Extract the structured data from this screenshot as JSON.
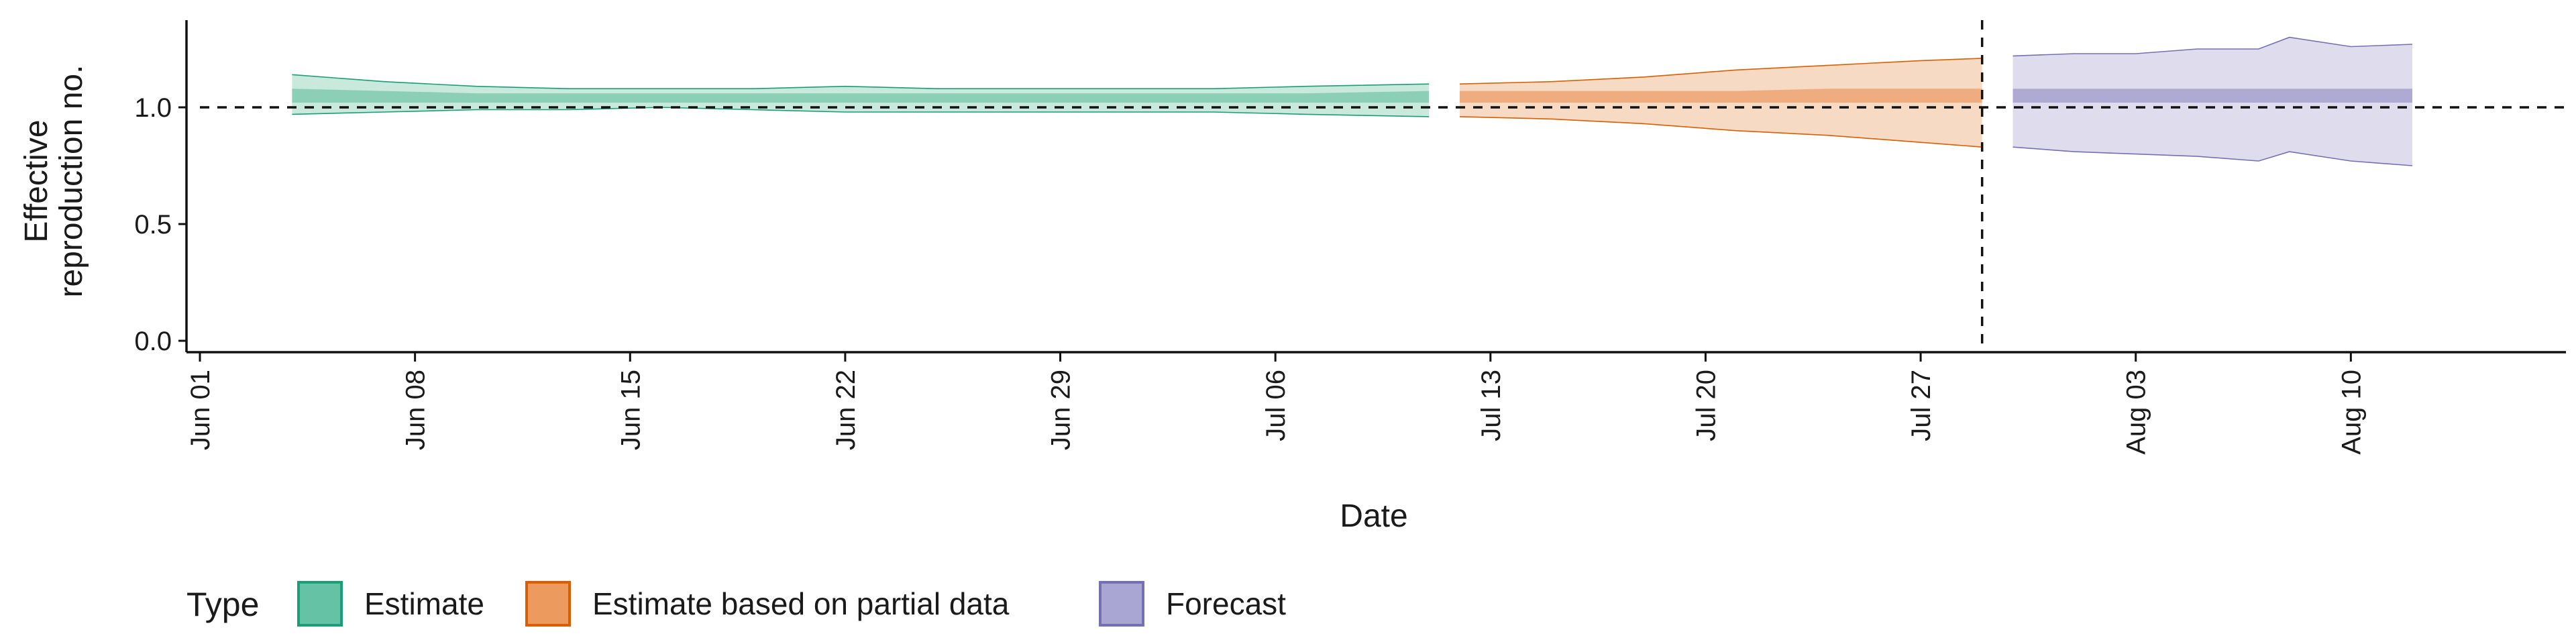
{
  "chart_data": {
    "type": "area",
    "xlabel": "Date",
    "ylabel_lines": [
      "Effective",
      "reproduction no."
    ],
    "x_ticks": [
      "Jun 01",
      "Jun 08",
      "Jun 15",
      "Jun 22",
      "Jun 29",
      "Jul 06",
      "Jul 13",
      "Jul 20",
      "Jul 27",
      "Aug 03",
      "Aug 10"
    ],
    "x_range": [
      "2020-06-01",
      "2020-08-17"
    ],
    "y_ticks": [
      "0.0",
      "0.5",
      "1.0"
    ],
    "ylim": [
      0,
      1.35
    ],
    "reference_line_y": 1.0,
    "reference_line_date": "2020-07-29",
    "legend": {
      "title": "Type",
      "position": "bottom",
      "items": [
        {
          "label": "Estimate",
          "fill": "#66c2a5",
          "stroke": "#1b9e77"
        },
        {
          "label": "Estimate based on partial data",
          "fill": "#ec9a5e",
          "stroke": "#d95f02"
        },
        {
          "label": "Forecast",
          "fill": "#a9a6d3",
          "stroke": "#7570b3"
        }
      ]
    },
    "series": [
      {
        "name": "Estimate",
        "color_light": "#bfe5d6",
        "color_mid": "#8bd0b6",
        "color_line": "#1b9e77",
        "dates": [
          "2020-06-04",
          "2020-06-07",
          "2020-06-10",
          "2020-06-13",
          "2020-06-16",
          "2020-06-19",
          "2020-06-22",
          "2020-06-25",
          "2020-06-28",
          "2020-07-01",
          "2020-07-04",
          "2020-07-07",
          "2020-07-11"
        ],
        "lower90": [
          0.97,
          0.98,
          0.99,
          0.99,
          1.0,
          0.99,
          0.98,
          0.98,
          0.98,
          0.98,
          0.98,
          0.97,
          0.96
        ],
        "upper90": [
          1.14,
          1.11,
          1.09,
          1.08,
          1.08,
          1.08,
          1.09,
          1.08,
          1.08,
          1.08,
          1.08,
          1.09,
          1.1
        ],
        "lower50": [
          1.02,
          1.02,
          1.02,
          1.02,
          1.02,
          1.02,
          1.02,
          1.02,
          1.02,
          1.02,
          1.02,
          1.02,
          1.02
        ],
        "upper50": [
          1.08,
          1.07,
          1.06,
          1.06,
          1.06,
          1.06,
          1.06,
          1.06,
          1.06,
          1.06,
          1.06,
          1.06,
          1.07
        ]
      },
      {
        "name": "Estimate based on partial data",
        "color_light": "#f6d3b8",
        "color_mid": "#efad7f",
        "color_line": "#d95f02",
        "dates": [
          "2020-07-12",
          "2020-07-15",
          "2020-07-18",
          "2020-07-21",
          "2020-07-24",
          "2020-07-27",
          "2020-07-29"
        ],
        "lower90": [
          0.96,
          0.95,
          0.93,
          0.9,
          0.88,
          0.85,
          0.83
        ],
        "upper90": [
          1.1,
          1.11,
          1.13,
          1.16,
          1.18,
          1.2,
          1.21
        ],
        "lower50": [
          1.02,
          1.02,
          1.02,
          1.02,
          1.02,
          1.02,
          1.02
        ],
        "upper50": [
          1.07,
          1.07,
          1.07,
          1.07,
          1.08,
          1.08,
          1.08
        ]
      },
      {
        "name": "Forecast",
        "color_light": "#d9d7ea",
        "color_mid": "#aeaad3",
        "color_line": "#7570b3",
        "dates": [
          "2020-07-30",
          "2020-08-01",
          "2020-08-03",
          "2020-08-05",
          "2020-08-07",
          "2020-08-08",
          "2020-08-10",
          "2020-08-12"
        ],
        "lower90": [
          0.83,
          0.81,
          0.8,
          0.79,
          0.77,
          0.81,
          0.77,
          0.75
        ],
        "upper90": [
          1.22,
          1.23,
          1.23,
          1.25,
          1.25,
          1.3,
          1.26,
          1.27
        ],
        "lower50": [
          1.02,
          1.02,
          1.02,
          1.02,
          1.02,
          1.02,
          1.02,
          1.02
        ],
        "upper50": [
          1.08,
          1.08,
          1.08,
          1.08,
          1.08,
          1.08,
          1.08,
          1.08
        ]
      }
    ]
  }
}
